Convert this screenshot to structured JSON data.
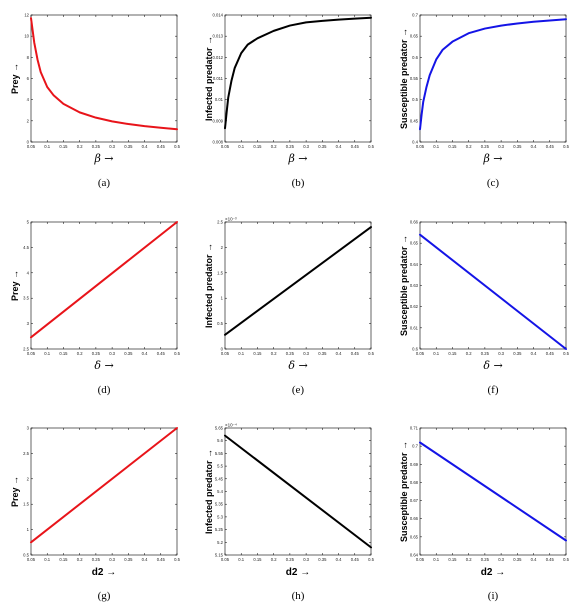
{
  "colors": {
    "red": "#e8141a",
    "black": "#000000",
    "blue": "#1414e6"
  },
  "chart_data": [
    {
      "type": "line",
      "caption": "(a)",
      "xlabel": "β →",
      "ylabel": "Prey →",
      "xlim": [
        0.05,
        0.5
      ],
      "ylim": [
        0,
        12
      ],
      "color": "red",
      "x_ticks": [
        "0.05",
        "0.1",
        "0.15",
        "0.2",
        "0.25",
        "0.3",
        "0.35",
        "0.4",
        "0.45",
        "0.5"
      ],
      "y_ticks": [
        "0",
        "2",
        "4",
        "6",
        "8",
        "10",
        "12"
      ],
      "x": [
        0.05,
        0.06,
        0.07,
        0.08,
        0.1,
        0.12,
        0.15,
        0.2,
        0.25,
        0.3,
        0.35,
        0.4,
        0.45,
        0.5
      ],
      "y": [
        11.7,
        9.4,
        7.8,
        6.6,
        5.2,
        4.4,
        3.6,
        2.8,
        2.3,
        1.95,
        1.7,
        1.5,
        1.35,
        1.2
      ]
    },
    {
      "type": "line",
      "caption": "(b)",
      "xlabel": "β →",
      "ylabel": "Infected predator →",
      "xlim": [
        0.05,
        0.5
      ],
      "ylim": [
        0.008,
        0.014
      ],
      "color": "black",
      "x_ticks": [
        "0.05",
        "0.1",
        "0.15",
        "0.2",
        "0.25",
        "0.3",
        "0.35",
        "0.4",
        "0.45",
        "0.5"
      ],
      "y_ticks": [
        "0.008",
        "0.009",
        "0.01",
        "0.011",
        "0.012",
        "0.013",
        "0.014"
      ],
      "x": [
        0.05,
        0.055,
        0.06,
        0.07,
        0.08,
        0.1,
        0.12,
        0.15,
        0.2,
        0.25,
        0.3,
        0.35,
        0.4,
        0.45,
        0.5
      ],
      "y": [
        0.00865,
        0.0094,
        0.0101,
        0.0109,
        0.0115,
        0.0122,
        0.0126,
        0.0129,
        0.01325,
        0.0135,
        0.01365,
        0.01372,
        0.01378,
        0.01383,
        0.01387
      ]
    },
    {
      "type": "line",
      "caption": "(c)",
      "xlabel": "β →",
      "ylabel": "Susceptible predator →",
      "xlim": [
        0.05,
        0.5
      ],
      "ylim": [
        0.4,
        0.7
      ],
      "color": "blue",
      "x_ticks": [
        "0.05",
        "0.1",
        "0.15",
        "0.2",
        "0.25",
        "0.3",
        "0.35",
        "0.4",
        "0.45",
        "0.5"
      ],
      "y_ticks": [
        "0.4",
        "0.45",
        "0.5",
        "0.55",
        "0.6",
        "0.65",
        "0.7"
      ],
      "x": [
        0.05,
        0.055,
        0.06,
        0.07,
        0.08,
        0.1,
        0.12,
        0.15,
        0.2,
        0.25,
        0.3,
        0.35,
        0.4,
        0.45,
        0.5
      ],
      "y": [
        0.43,
        0.465,
        0.495,
        0.53,
        0.558,
        0.595,
        0.618,
        0.637,
        0.657,
        0.668,
        0.675,
        0.68,
        0.684,
        0.687,
        0.69
      ]
    },
    {
      "type": "line",
      "caption": "(d)",
      "xlabel": "δ →",
      "ylabel": "Prey →",
      "xlim": [
        0.05,
        0.5
      ],
      "ylim": [
        2.5,
        5
      ],
      "color": "red",
      "x_ticks": [
        "0.05",
        "0.1",
        "0.15",
        "0.2",
        "0.25",
        "0.3",
        "0.35",
        "0.4",
        "0.45",
        "0.5"
      ],
      "y_ticks": [
        "2.5",
        "3",
        "3.5",
        "4",
        "4.5",
        "5"
      ],
      "x": [
        0.05,
        0.5
      ],
      "y": [
        2.73,
        5.0
      ]
    },
    {
      "type": "line",
      "caption": "(e)",
      "xlabel": "δ →",
      "ylabel": "Infected predator →",
      "multiplier": "×10⁻³",
      "xlim": [
        0.05,
        0.5
      ],
      "ylim": [
        0,
        2.5
      ],
      "color": "black",
      "x_ticks": [
        "0.05",
        "0.1",
        "0.15",
        "0.2",
        "0.25",
        "0.3",
        "0.35",
        "0.4",
        "0.45",
        "0.5"
      ],
      "y_ticks": [
        "0",
        "0.5",
        "1",
        "1.5",
        "2",
        "2.5"
      ],
      "x": [
        0.05,
        0.5
      ],
      "y": [
        0.28,
        2.4
      ]
    },
    {
      "type": "line",
      "caption": "(f)",
      "xlabel": "δ →",
      "ylabel": "Susceptible predator →",
      "xlim": [
        0.05,
        0.5
      ],
      "ylim": [
        0.6,
        0.66
      ],
      "color": "blue",
      "x_ticks": [
        "0.05",
        "0.1",
        "0.15",
        "0.2",
        "0.25",
        "0.3",
        "0.35",
        "0.4",
        "0.45",
        "0.5"
      ],
      "y_ticks": [
        "0.6",
        "0.61",
        "0.62",
        "0.63",
        "0.64",
        "0.65",
        "0.66"
      ],
      "x": [
        0.05,
        0.5
      ],
      "y": [
        0.654,
        0.6
      ]
    },
    {
      "type": "line",
      "caption": "(g)",
      "xlabel": "d2 →",
      "ylabel": "Prey →",
      "xlim": [
        0.05,
        0.5
      ],
      "ylim": [
        0.5,
        3
      ],
      "color": "red",
      "x_ticks": [
        "0.05",
        "0.1",
        "0.15",
        "0.2",
        "0.25",
        "0.3",
        "0.35",
        "0.4",
        "0.45",
        "0.5"
      ],
      "y_ticks": [
        "0.5",
        "1",
        "1.5",
        "2",
        "2.5",
        "3"
      ],
      "x": [
        0.05,
        0.5
      ],
      "y": [
        0.75,
        3.0
      ]
    },
    {
      "type": "line",
      "caption": "(h)",
      "xlabel": "d2 →",
      "ylabel": "Infected predator →",
      "multiplier": "×10⁻⁴",
      "xlim": [
        0.05,
        0.5
      ],
      "ylim": [
        5.15,
        5.65
      ],
      "color": "black",
      "x_ticks": [
        "0.05",
        "0.1",
        "0.15",
        "0.2",
        "0.25",
        "0.3",
        "0.35",
        "0.4",
        "0.45",
        "0.5"
      ],
      "y_ticks": [
        "5.15",
        "5.2",
        "5.25",
        "5.3",
        "5.35",
        "5.4",
        "5.45",
        "5.5",
        "5.55",
        "5.6",
        "5.65"
      ],
      "x": [
        0.05,
        0.5
      ],
      "y": [
        5.62,
        5.18
      ]
    },
    {
      "type": "line",
      "caption": "(i)",
      "xlabel": "d2 →",
      "ylabel": "Susceptible predator →",
      "xlim": [
        0.05,
        0.5
      ],
      "ylim": [
        0.64,
        0.71
      ],
      "color": "blue",
      "x_ticks": [
        "0.05",
        "0.1",
        "0.15",
        "0.2",
        "0.25",
        "0.3",
        "0.35",
        "0.4",
        "0.45",
        "0.5"
      ],
      "y_ticks": [
        "0.64",
        "0.65",
        "0.66",
        "0.67",
        "0.68",
        "0.69",
        "0.7",
        "0.71"
      ],
      "x": [
        0.05,
        0.5
      ],
      "y": [
        0.702,
        0.648
      ]
    }
  ]
}
